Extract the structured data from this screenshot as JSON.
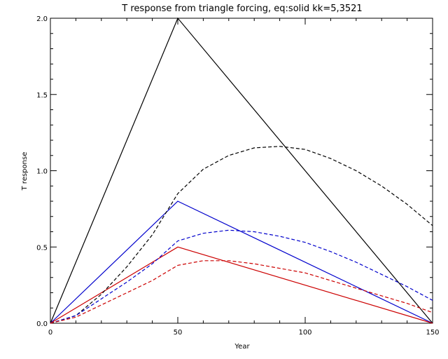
{
  "chart_data": {
    "type": "line",
    "title": "T response from triangle forcing, eq:solid kk=5,3521",
    "xlabel": "Year",
    "ylabel": "T response",
    "xlim": [
      0,
      150
    ],
    "ylim": [
      0,
      2.0
    ],
    "xticks": [
      0,
      50,
      100,
      150
    ],
    "xtick_labels": [
      "0",
      "50",
      "100",
      "150"
    ],
    "yticks": [
      0,
      0.5,
      1.0,
      1.5,
      2.0
    ],
    "ytick_labels": [
      "0.0",
      "0.5",
      "1.0",
      "1.5",
      "2.0"
    ],
    "grid": false,
    "legend": "none",
    "series": [
      {
        "color": "#000000",
        "style": "solid",
        "x": [
          0,
          50,
          150
        ],
        "y": [
          0,
          2.0,
          0
        ]
      },
      {
        "color": "#0000cc",
        "style": "solid",
        "x": [
          0,
          50,
          150
        ],
        "y": [
          0,
          0.8,
          0
        ]
      },
      {
        "color": "#cc0000",
        "style": "solid",
        "x": [
          0,
          50,
          150
        ],
        "y": [
          0,
          0.5,
          0
        ]
      },
      {
        "color": "#000000",
        "style": "dashed",
        "x": [
          0,
          10,
          20,
          30,
          40,
          50,
          60,
          70,
          80,
          90,
          100,
          110,
          120,
          130,
          140,
          150
        ],
        "y": [
          0,
          0.05,
          0.19,
          0.37,
          0.58,
          0.85,
          1.01,
          1.1,
          1.15,
          1.16,
          1.14,
          1.08,
          1.0,
          0.9,
          0.78,
          0.64
        ]
      },
      {
        "color": "#0000cc",
        "style": "dashed",
        "x": [
          0,
          10,
          20,
          30,
          40,
          50,
          60,
          70,
          80,
          90,
          100,
          110,
          120,
          130,
          140,
          150
        ],
        "y": [
          0,
          0.05,
          0.16,
          0.27,
          0.39,
          0.54,
          0.59,
          0.61,
          0.6,
          0.57,
          0.53,
          0.47,
          0.4,
          0.32,
          0.24,
          0.15
        ]
      },
      {
        "color": "#cc0000",
        "style": "dashed",
        "x": [
          0,
          10,
          20,
          30,
          40,
          50,
          60,
          70,
          80,
          90,
          100,
          110,
          120,
          130,
          140,
          150
        ],
        "y": [
          0,
          0.04,
          0.12,
          0.2,
          0.28,
          0.38,
          0.41,
          0.41,
          0.39,
          0.36,
          0.33,
          0.28,
          0.23,
          0.18,
          0.13,
          0.07
        ]
      }
    ]
  }
}
